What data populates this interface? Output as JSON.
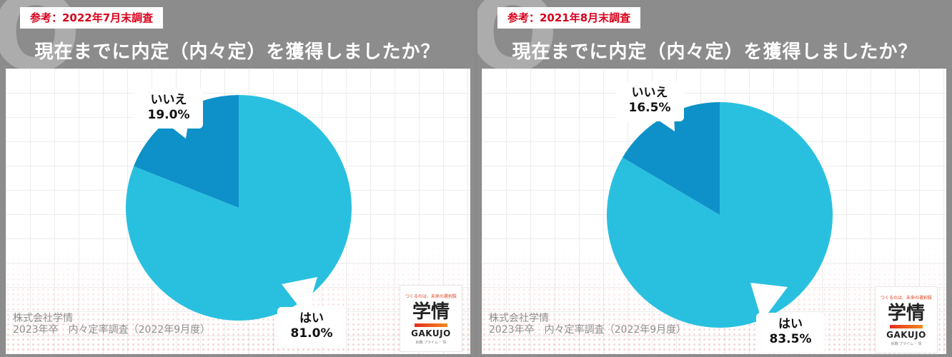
{
  "panels": [
    {
      "tag": "参考：2022年7月末調査",
      "question": "現在までに内定（内々定）を獲得しましたか？",
      "source_line1": "株式会社学情",
      "source_line2": "2023年卒　内々定率調査（2022年9月度）",
      "logo": {
        "tagline": "つくるのは、未来の選択肢",
        "kanji": "学情",
        "word": "GAKUJO",
        "tiny": "就職 プライム・ 情"
      }
    },
    {
      "tag": "参考：2021年8月末調査",
      "question": "現在までに内定（内々定）を獲得しましたか？",
      "source_line1": "株式会社学情",
      "source_line2": "2023年卒　内々定率調査（2022年9月度）",
      "logo": {
        "tagline": "つくるのは、未来の選択肢",
        "kanji": "学情",
        "word": "GAKUJO",
        "tiny": "就職 プライム・ 情"
      }
    }
  ],
  "colors": {
    "yes": "#29c0e0",
    "no": "#0e91c8",
    "tag_text": "#d9001b"
  },
  "chart_data": [
    {
      "type": "pie",
      "title": "現在までに内定（内々定）を獲得しましたか？",
      "subtitle": "参考：2022年7月末調査",
      "categories": [
        "はい",
        "いいえ"
      ],
      "values": [
        81.0,
        19.0
      ],
      "labels": [
        "81.0%",
        "19.0%"
      ]
    },
    {
      "type": "pie",
      "title": "現在までに内定（内々定）を獲得しましたか？",
      "subtitle": "参考：2021年8月末調査",
      "categories": [
        "はい",
        "いいえ"
      ],
      "values": [
        83.5,
        16.5
      ],
      "labels": [
        "83.5%",
        "16.5%"
      ]
    }
  ]
}
